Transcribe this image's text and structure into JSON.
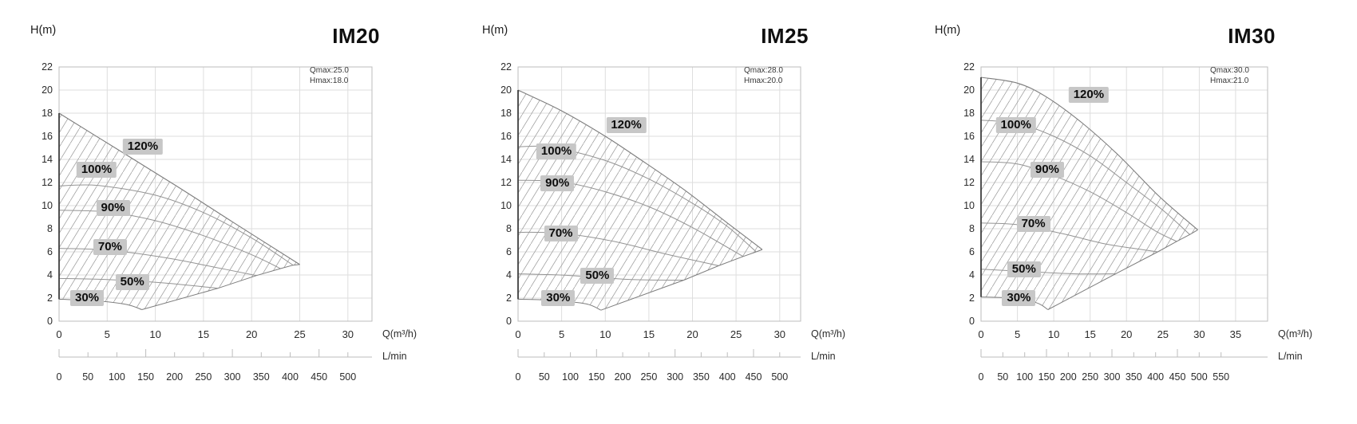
{
  "page": {
    "background": "#ffffff"
  },
  "colors": {
    "grid": "#dedede",
    "frame": "#bdbdbd",
    "curve": "#7d7d7d",
    "inner_curve": "#949494",
    "hatch": "#9e9e9e",
    "region_left_edge": "#3f3f3f",
    "badge_bg": "#c7c7c7",
    "text": "#222222"
  },
  "chart_data": [
    {
      "type": "area",
      "title": "IM20",
      "y_axis_label": "H(m)",
      "x_axis_label": "Q(m³/h)",
      "secondary_x_axis_label": "L/min",
      "annotations": [
        "Qmax:25.0",
        "Hmax:18.0"
      ],
      "qmax": 25.0,
      "hmax": 18.0,
      "y_axis_range": [
        0,
        22
      ],
      "x_axis_range": [
        0,
        32.5
      ],
      "y_ticks": [
        0,
        2,
        4,
        6,
        8,
        10,
        12,
        14,
        16,
        18,
        20,
        22
      ],
      "x_ticks": [
        0,
        5,
        10,
        15,
        20,
        25,
        30
      ],
      "lmin_ticks": [
        0,
        50,
        100,
        150,
        200,
        250,
        300,
        350,
        400,
        450,
        500
      ],
      "lmin_per_m3h": 16.667,
      "series": [
        {
          "name": "30%",
          "label_pos": [
            2.9,
            2.0
          ],
          "points": [
            [
              0,
              1.9
            ],
            [
              4,
              1.75
            ],
            [
              7,
              1.45
            ],
            [
              8.6,
              1.0
            ]
          ]
        },
        {
          "name": "50%",
          "label_pos": [
            7.6,
            3.4
          ],
          "points": [
            [
              0,
              3.7
            ],
            [
              5,
              3.6
            ],
            [
              11,
              3.3
            ],
            [
              16.5,
              2.85
            ]
          ]
        },
        {
          "name": "70%",
          "label_pos": [
            5.3,
            6.4
          ],
          "points": [
            [
              0,
              6.3
            ],
            [
              5,
              6.15
            ],
            [
              11,
              5.5
            ],
            [
              16,
              4.7
            ],
            [
              20.5,
              3.95
            ]
          ]
        },
        {
          "name": "90%",
          "label_pos": [
            5.6,
            9.8
          ],
          "points": [
            [
              0,
              9.6
            ],
            [
              5,
              9.45
            ],
            [
              10,
              8.7
            ],
            [
              15,
              7.4
            ],
            [
              20,
              5.75
            ],
            [
              23,
              4.55
            ]
          ]
        },
        {
          "name": "100%",
          "label_pos": [
            3.9,
            13.1
          ],
          "points": [
            [
              0,
              11.7
            ],
            [
              4,
              11.75
            ],
            [
              10,
              10.9
            ],
            [
              15,
              9.4
            ],
            [
              20,
              7.2
            ],
            [
              24.3,
              4.85
            ]
          ]
        },
        {
          "name": "120%",
          "label_pos": [
            8.7,
            15.1
          ],
          "points": [
            [
              0,
              18
            ],
            [
              6,
              14.9
            ],
            [
              12,
              11.8
            ],
            [
              18,
              8.6
            ],
            [
              25,
              4.9
            ]
          ]
        }
      ]
    },
    {
      "type": "area",
      "title": "IM25",
      "y_axis_label": "H(m)",
      "x_axis_label": "Q(m³/h)",
      "secondary_x_axis_label": "L/min",
      "annotations": [
        "Qmax:28.0",
        "Hmax:20.0"
      ],
      "qmax": 28.0,
      "hmax": 20.0,
      "y_axis_range": [
        0,
        22
      ],
      "x_axis_range": [
        0,
        32.4
      ],
      "y_ticks": [
        0,
        2,
        4,
        6,
        8,
        10,
        12,
        14,
        16,
        18,
        20,
        22
      ],
      "x_ticks": [
        0,
        5,
        10,
        15,
        20,
        25,
        30
      ],
      "lmin_ticks": [
        0,
        50,
        100,
        150,
        200,
        250,
        300,
        350,
        400,
        450,
        500
      ],
      "lmin_per_m3h": 16.667,
      "series": [
        {
          "name": "30%",
          "label_pos": [
            4.6,
            2.0
          ],
          "points": [
            [
              0,
              1.9
            ],
            [
              4,
              1.8
            ],
            [
              7.8,
              1.5
            ],
            [
              9.5,
              0.95
            ]
          ]
        },
        {
          "name": "50%",
          "label_pos": [
            9.1,
            3.9
          ],
          "points": [
            [
              0,
              4.1
            ],
            [
              6,
              3.95
            ],
            [
              13,
              3.6
            ],
            [
              19,
              3.55
            ]
          ]
        },
        {
          "name": "70%",
          "label_pos": [
            4.9,
            7.6
          ],
          "points": [
            [
              0,
              7.7
            ],
            [
              5,
              7.6
            ],
            [
              11,
              6.9
            ],
            [
              17,
              5.8
            ],
            [
              23,
              4.8
            ]
          ]
        },
        {
          "name": "90%",
          "label_pos": [
            4.5,
            11.9
          ],
          "points": [
            [
              0,
              12.2
            ],
            [
              5,
              12.05
            ],
            [
              10,
              11.2
            ],
            [
              15,
              9.9
            ],
            [
              20,
              8.1
            ],
            [
              25.8,
              5.6
            ]
          ]
        },
        {
          "name": "100%",
          "label_pos": [
            4.4,
            14.7
          ],
          "points": [
            [
              0,
              15.1
            ],
            [
              4,
              15.05
            ],
            [
              10,
              13.9
            ],
            [
              15,
              12.3
            ],
            [
              20,
              10.2
            ],
            [
              24,
              8.2
            ],
            [
              27.3,
              6.0
            ]
          ]
        },
        {
          "name": "120%",
          "label_pos": [
            12.4,
            17.0
          ],
          "points": [
            [
              0,
              20
            ],
            [
              5,
              18.2
            ],
            [
              10,
              16.0
            ],
            [
              14,
              14.0
            ],
            [
              19,
              11.4
            ],
            [
              24,
              8.5
            ],
            [
              28,
              6.2
            ]
          ]
        }
      ]
    },
    {
      "type": "area",
      "title": "IM30",
      "y_axis_label": "H(m)",
      "x_axis_label": "Q(m³/h)",
      "secondary_x_axis_label": "L/min",
      "annotations": [
        "Qmax:30.0",
        "Hmax:21.0"
      ],
      "qmax": 30.0,
      "hmax": 21.0,
      "y_axis_range": [
        0,
        22
      ],
      "x_axis_range": [
        0,
        39.4
      ],
      "y_ticks": [
        0,
        2,
        4,
        6,
        8,
        10,
        12,
        14,
        16,
        18,
        20,
        22
      ],
      "x_ticks": [
        0,
        5,
        10,
        15,
        20,
        25,
        30,
        35
      ],
      "lmin_ticks": [
        0,
        50,
        100,
        150,
        200,
        250,
        300,
        350,
        400,
        450,
        500,
        550
      ],
      "lmin_per_m3h": 16.667,
      "series": [
        {
          "name": "30%",
          "label_pos": [
            5.2,
            2.0
          ],
          "points": [
            [
              0,
              2.1
            ],
            [
              4,
              2.0
            ],
            [
              7.6,
              1.6
            ],
            [
              9.2,
              1.0
            ]
          ]
        },
        {
          "name": "50%",
          "label_pos": [
            5.9,
            4.5
          ],
          "points": [
            [
              0,
              4.5
            ],
            [
              6,
              4.3
            ],
            [
              13,
              4.1
            ],
            [
              18.5,
              4.1
            ]
          ]
        },
        {
          "name": "70%",
          "label_pos": [
            7.2,
            8.4
          ],
          "points": [
            [
              0,
              8.5
            ],
            [
              5,
              8.35
            ],
            [
              11,
              7.6
            ],
            [
              17,
              6.7
            ],
            [
              21,
              6.3
            ],
            [
              24.3,
              6.0
            ]
          ]
        },
        {
          "name": "90%",
          "label_pos": [
            9.1,
            13.1
          ],
          "points": [
            [
              0,
              13.8
            ],
            [
              5,
              13.6
            ],
            [
              10,
              12.6
            ],
            [
              15,
              11.2
            ],
            [
              20,
              9.4
            ],
            [
              24,
              7.8
            ],
            [
              26.9,
              6.9
            ]
          ]
        },
        {
          "name": "100%",
          "label_pos": [
            4.8,
            17.0
          ],
          "points": [
            [
              0,
              17.4
            ],
            [
              5,
              17.1
            ],
            [
              10,
              16.0
            ],
            [
              15,
              14.3
            ],
            [
              20,
              12.0
            ],
            [
              25,
              9.6
            ],
            [
              28.7,
              7.5
            ]
          ]
        },
        {
          "name": "120%",
          "label_pos": [
            14.8,
            19.6
          ],
          "points": [
            [
              0,
              21.1
            ],
            [
              5,
              20.6
            ],
            [
              9,
              19.4
            ],
            [
              14,
              17.1
            ],
            [
              19,
              14.3
            ],
            [
              24.5,
              10.8
            ],
            [
              29.8,
              7.9
            ]
          ]
        }
      ]
    }
  ]
}
